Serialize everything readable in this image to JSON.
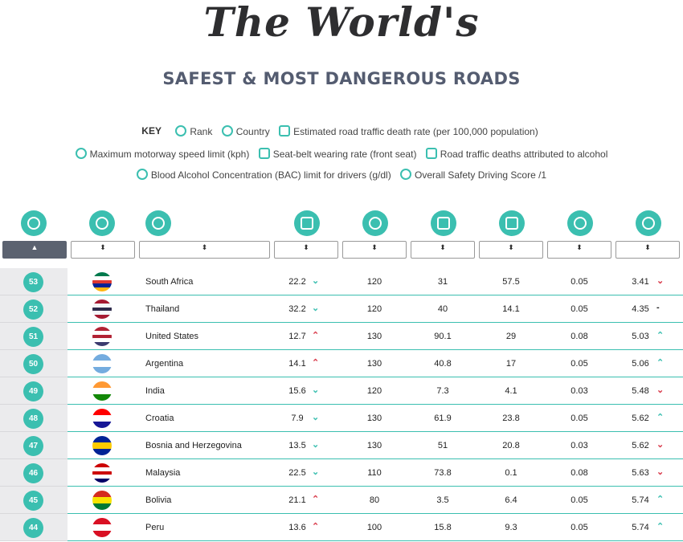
{
  "title": "The World's",
  "subtitle": "SAFEST & MOST DANGEROUS ROADS",
  "key": {
    "label": "KEY",
    "items": [
      {
        "text": "Rank",
        "icon": "trophy-icon"
      },
      {
        "text": "Country",
        "icon": "globe-icon"
      },
      {
        "text": "Estimated road traffic death rate (per 100,000 population)",
        "icon": "road-icon"
      },
      {
        "text": "Maximum motorway speed limit (kph)",
        "icon": "speedometer-icon"
      },
      {
        "text": "Seat-belt wearing rate (front seat)",
        "icon": "car-icon"
      },
      {
        "text": "Road traffic deaths attributed to alcohol",
        "icon": "glass-icon"
      },
      {
        "text": "Blood Alcohol Concentration (BAC) limit for drivers (g/dl)",
        "icon": "bac-icon"
      },
      {
        "text": "Overall Safety Driving Score /1",
        "icon": "award-icon"
      }
    ]
  },
  "sort_glyph": "⬍",
  "sort_active_glyph": "▲",
  "accent_color": "#3bbfb0",
  "up_color": "#d93b4b",
  "chart_data": {
    "type": "table",
    "columns": [
      "Rank",
      "Country",
      "Estimated road traffic death rate (per 100,000 population)",
      "Maximum motorway speed limit (kph)",
      "Seat-belt wearing rate (front seat)",
      "Road traffic deaths attributed to alcohol",
      "Blood Alcohol Concentration (BAC) limit for drivers (g/dl)",
      "Overall Safety Driving Score /1"
    ],
    "rows": [
      {
        "rank": "53",
        "country": "South Africa",
        "death_rate": "22.2",
        "death_trend": "down",
        "speed": "120",
        "seatbelt": "31",
        "alcohol": "57.5",
        "bac": "0.05",
        "score": "3.41",
        "score_trend": "down"
      },
      {
        "rank": "52",
        "country": "Thailand",
        "death_rate": "32.2",
        "death_trend": "down",
        "speed": "120",
        "seatbelt": "40",
        "alcohol": "14.1",
        "bac": "0.05",
        "score": "4.35",
        "score_trend": "flat"
      },
      {
        "rank": "51",
        "country": "United States",
        "death_rate": "12.7",
        "death_trend": "up",
        "speed": "130",
        "seatbelt": "90.1",
        "alcohol": "29",
        "bac": "0.08",
        "score": "5.03",
        "score_trend": "up"
      },
      {
        "rank": "50",
        "country": "Argentina",
        "death_rate": "14.1",
        "death_trend": "up",
        "speed": "130",
        "seatbelt": "40.8",
        "alcohol": "17",
        "bac": "0.05",
        "score": "5.06",
        "score_trend": "up"
      },
      {
        "rank": "49",
        "country": "India",
        "death_rate": "15.6",
        "death_trend": "down",
        "speed": "120",
        "seatbelt": "7.3",
        "alcohol": "4.1",
        "bac": "0.03",
        "score": "5.48",
        "score_trend": "down"
      },
      {
        "rank": "48",
        "country": "Croatia",
        "death_rate": "7.9",
        "death_trend": "down",
        "speed": "130",
        "seatbelt": "61.9",
        "alcohol": "23.8",
        "bac": "0.05",
        "score": "5.62",
        "score_trend": "up"
      },
      {
        "rank": "47",
        "country": "Bosnia and Herzegovina",
        "death_rate": "13.5",
        "death_trend": "down",
        "speed": "130",
        "seatbelt": "51",
        "alcohol": "20.8",
        "bac": "0.03",
        "score": "5.62",
        "score_trend": "down"
      },
      {
        "rank": "46",
        "country": "Malaysia",
        "death_rate": "22.5",
        "death_trend": "down",
        "speed": "110",
        "seatbelt": "73.8",
        "alcohol": "0.1",
        "bac": "0.08",
        "score": "5.63",
        "score_trend": "down"
      },
      {
        "rank": "45",
        "country": "Bolivia",
        "death_rate": "21.1",
        "death_trend": "up",
        "speed": "80",
        "seatbelt": "3.5",
        "alcohol": "6.4",
        "bac": "0.05",
        "score": "5.74",
        "score_trend": "up"
      },
      {
        "rank": "44",
        "country": "Peru",
        "death_rate": "13.6",
        "death_trend": "up",
        "speed": "100",
        "seatbelt": "15.8",
        "alcohol": "9.3",
        "bac": "0.05",
        "score": "5.74",
        "score_trend": "up"
      }
    ]
  }
}
